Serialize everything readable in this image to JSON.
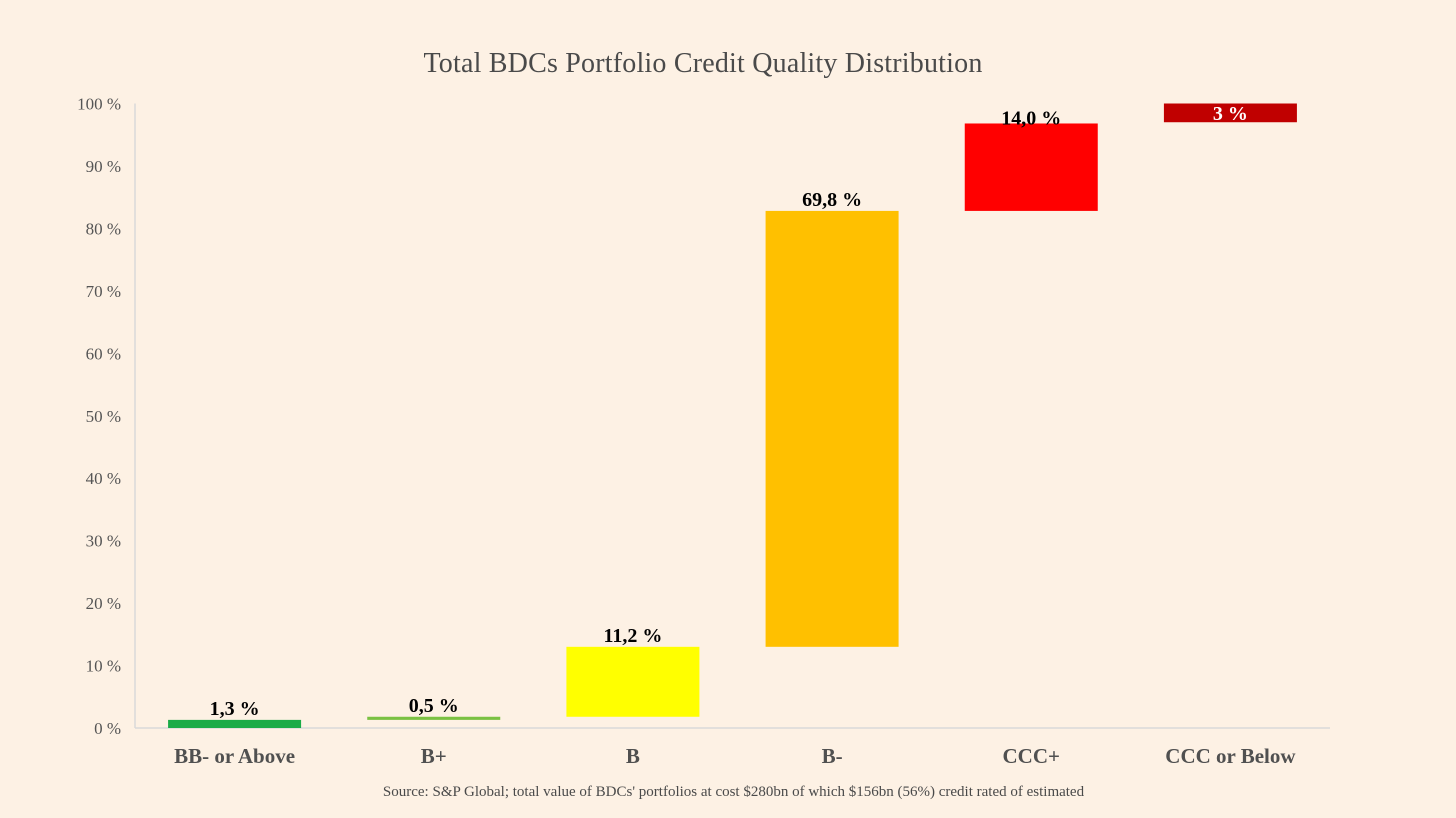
{
  "chart_data": {
    "type": "bar",
    "subtype": "waterfall",
    "title": "Total BDCs Portfolio Credit Quality Distribution",
    "xlabel": "",
    "ylabel": "",
    "ylim": [
      0,
      100
    ],
    "ytick_values": [
      0,
      10,
      20,
      30,
      40,
      50,
      60,
      70,
      80,
      90,
      100
    ],
    "ytick_labels": [
      "0 %",
      "10 %",
      "20 %",
      "30 %",
      "40 %",
      "50 %",
      "60 %",
      "70 %",
      "80 %",
      "90 %",
      "100 %"
    ],
    "grid": false,
    "legend": "none",
    "categories": [
      "BB- or Above",
      "B+",
      "B",
      "B-",
      "CCC+",
      "CCC or Below"
    ],
    "bars": [
      {
        "category": "BB- or Above",
        "start": 0,
        "end": 1.3,
        "value": 1.3,
        "label": "1,3 %",
        "color": "#1aab47",
        "label_color": "#000000",
        "label_position": "above"
      },
      {
        "category": "B+",
        "start": 1.3,
        "end": 1.8,
        "value": 0.5,
        "label": "0,5 %",
        "color": "#7ac142",
        "label_color": "#000000",
        "label_position": "above"
      },
      {
        "category": "B",
        "start": 1.8,
        "end": 13.0,
        "value": 11.2,
        "label": "11,2 %",
        "color": "#ffff00",
        "label_color": "#000000",
        "label_position": "above"
      },
      {
        "category": "B-",
        "start": 13.0,
        "end": 82.8,
        "value": 69.8,
        "label": "69,8 %",
        "color": "#ffc000",
        "label_color": "#000000",
        "label_position": "above"
      },
      {
        "category": "CCC+",
        "start": 82.8,
        "end": 96.8,
        "value": 14.0,
        "label": "14,0 %",
        "color": "#ff0000",
        "label_color": "#000000",
        "label_position": "top-edge"
      },
      {
        "category": "CCC or Below",
        "start": 97.0,
        "end": 100.0,
        "value": 3.0,
        "label": "3 %",
        "color": "#c00000",
        "label_color": "#ffffff",
        "label_position": "inside"
      }
    ],
    "source_note": "Source: S&P Global; total value of BDCs' portfolios at cost $280bn of which $156bn (56%) credit rated of estimated"
  }
}
